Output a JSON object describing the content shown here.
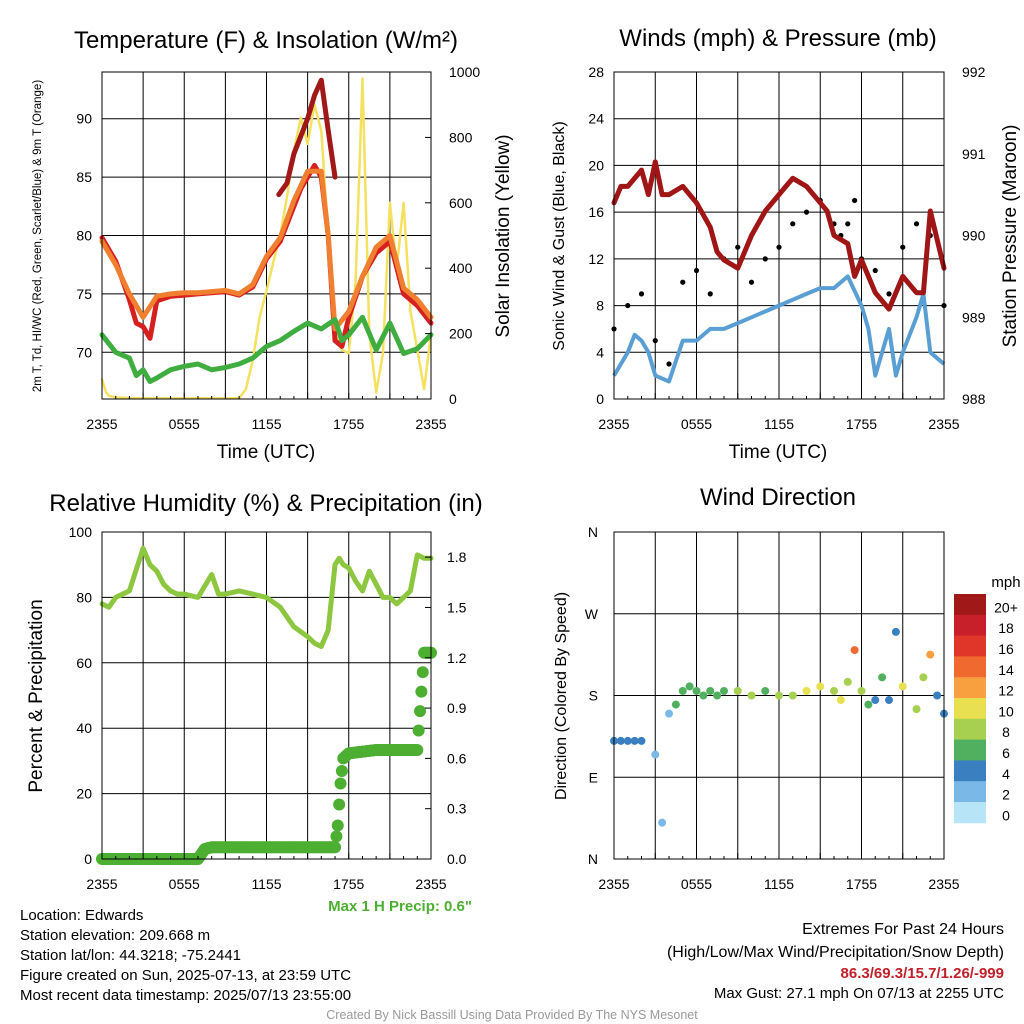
{
  "colors": {
    "green_rh": "#8dc63f",
    "precip": "#4daf32",
    "maroon": "#a01515",
    "black": "#000000",
    "blue": "#5a9fd4",
    "red": "#d62020",
    "orange": "#f08030",
    "yellow": "#f5e160",
    "scarlet": "#a01818",
    "hi_green": "#3fad3f",
    "extremes": "#c0202a"
  },
  "chart_data": [
    {
      "type": "line",
      "title": "Temperature (F) & Insolation (W/m²)",
      "xlabel": "Time (UTC)",
      "ylabel": "2m T, Td, HI/WC (Red, Green, Scarlet/Blue) & 9m T (Orange)",
      "y2label": "Solar Insolation (Yellow)",
      "x_ticks": [
        "2355",
        "0555",
        "1155",
        "1755",
        "2355"
      ],
      "y_ticks": [
        "70",
        "75",
        "80",
        "85",
        "90"
      ],
      "y2_ticks": [
        "0",
        "200",
        "400",
        "600",
        "800",
        "1000"
      ],
      "ylim": [
        66,
        94
      ],
      "y2lim": [
        0,
        1000
      ],
      "series": [
        {
          "name": "2m T",
          "color": "red",
          "x": [
            0,
            1,
            2,
            2.5,
            3,
            3.5,
            4,
            5,
            6,
            7,
            8,
            9,
            10,
            11,
            12,
            13,
            14,
            14.5,
            15,
            15.5,
            16,
            16.5,
            17,
            17.5,
            18,
            19,
            20,
            21,
            22,
            23,
            24
          ],
          "values": [
            79.8,
            77.8,
            74.5,
            72.5,
            72.2,
            71.2,
            74.4,
            74.8,
            74.9,
            75,
            75.1,
            75.2,
            74.9,
            75.6,
            78,
            79.5,
            82.5,
            84,
            85,
            86,
            85,
            80,
            71,
            70.5,
            73,
            76.5,
            78.5,
            79.5,
            75,
            74,
            72.5
          ]
        },
        {
          "name": "9m T",
          "color": "orange",
          "x": [
            0,
            1,
            2,
            3,
            4,
            5,
            6,
            7,
            8,
            9,
            10,
            11,
            12,
            13,
            14,
            15,
            16,
            16.5,
            17,
            18,
            19,
            20,
            21,
            22,
            23,
            24
          ],
          "values": [
            79.5,
            77.5,
            75,
            73,
            74.8,
            75,
            75.1,
            75.1,
            75.2,
            75.3,
            75,
            75.8,
            78.2,
            79.8,
            83,
            85.5,
            85.5,
            80,
            72,
            73.5,
            76.5,
            79,
            80,
            75.5,
            74.5,
            73
          ]
        },
        {
          "name": "Td",
          "color": "hi_green",
          "x": [
            0,
            1,
            2,
            2.5,
            3,
            3.5,
            4,
            5,
            6,
            7,
            8,
            9,
            10,
            11,
            12,
            13,
            14,
            15,
            16,
            17,
            17.5,
            18,
            19,
            20,
            21,
            22,
            23,
            24
          ],
          "values": [
            71.5,
            70,
            69.5,
            68,
            68.5,
            67.5,
            67.8,
            68.5,
            68.8,
            69,
            68.5,
            68.7,
            69,
            69.5,
            70.5,
            71,
            71.8,
            72.5,
            72,
            72.8,
            71,
            71.5,
            73,
            70.2,
            72.5,
            69.9,
            70.3,
            71.5
          ]
        },
        {
          "name": "HI",
          "color": "scarlet",
          "x": [
            12.9,
            13.5,
            14,
            14.5,
            15,
            15.5,
            16,
            16.5,
            17
          ],
          "values": [
            83.5,
            84.5,
            87,
            88.5,
            90,
            92,
            93.3,
            89,
            85
          ]
        }
      ],
      "y2_series": [
        {
          "name": "Solar",
          "color": "yellow",
          "x": [
            0,
            0.3,
            0.5,
            1,
            2,
            3,
            4,
            5,
            6,
            7,
            8,
            9,
            10,
            10.5,
            11,
            11.5,
            12,
            12.5,
            13,
            13.5,
            14,
            14.5,
            15,
            15.5,
            16,
            16.5,
            17,
            17.5,
            18,
            18.5,
            19,
            19.5,
            20,
            20.5,
            21,
            21.5,
            22,
            22.5,
            23,
            23.5,
            24
          ],
          "values": [
            60,
            20,
            10,
            5,
            3,
            2,
            2,
            2,
            2,
            2,
            2,
            2,
            2,
            30,
            120,
            250,
            330,
            420,
            500,
            620,
            760,
            860,
            780,
            900,
            820,
            500,
            200,
            150,
            140,
            360,
            980,
            200,
            20,
            140,
            600,
            400,
            600,
            270,
            150,
            30,
            200
          ]
        }
      ]
    },
    {
      "type": "scatter",
      "title": "Winds (mph) & Pressure (mb)",
      "xlabel": "Time (UTC)",
      "ylabel": "Sonic Wind & Gust (Blue, Black)",
      "y2label": "Station Pressure (Maroon)",
      "x_ticks": [
        "2355",
        "0555",
        "1155",
        "1755",
        "2355"
      ],
      "y_ticks": [
        "0",
        "4",
        "8",
        "12",
        "16",
        "20",
        "24",
        "28"
      ],
      "y2_ticks": [
        "988",
        "989",
        "990",
        "991",
        "992"
      ],
      "ylim": [
        0,
        28
      ],
      "y2lim": [
        988,
        992
      ],
      "series": [
        {
          "name": "Wind",
          "color": "blue",
          "x": [
            0,
            1,
            1.5,
            2,
            2.5,
            3,
            4,
            5,
            6,
            7,
            8,
            9,
            10,
            11,
            12,
            13,
            14,
            15,
            16,
            16.5,
            17,
            18,
            18.5,
            19,
            20,
            20.5,
            21,
            22,
            22.5,
            23,
            24
          ],
          "values": [
            2,
            4,
            5.5,
            5,
            4,
            2,
            1.5,
            5,
            5,
            6,
            6,
            6.5,
            7,
            7.5,
            8,
            8.5,
            9,
            9.5,
            9.5,
            10,
            10.5,
            8,
            6,
            2,
            6,
            2,
            4,
            7,
            9,
            4,
            3
          ]
        },
        {
          "name": "Gust",
          "color": "black",
          "x": [
            0,
            1,
            2,
            3,
            4,
            5,
            6,
            7,
            8,
            9,
            10,
            11,
            12,
            13,
            14,
            15,
            16,
            16.5,
            17,
            17.5,
            18,
            19,
            20,
            21,
            22,
            23,
            24
          ],
          "values": [
            6,
            8,
            9,
            5,
            3,
            10,
            11,
            9,
            12,
            13,
            10,
            12,
            13,
            15,
            16,
            17,
            15,
            14,
            15,
            17,
            12,
            11,
            9,
            13,
            15,
            14,
            8
          ]
        },
        {
          "name": "Pressure",
          "color": "maroon",
          "x": [
            0,
            0.5,
            1,
            2,
            2.5,
            3,
            3.5,
            4,
            5,
            6,
            7,
            7.5,
            8,
            9,
            10,
            11,
            12,
            12.5,
            13,
            14,
            15,
            15.5,
            16,
            17,
            17.5,
            18,
            19,
            20,
            21,
            22,
            22.5,
            23,
            24
          ],
          "values": [
            990.4,
            990.6,
            990.6,
            990.8,
            990.5,
            990.9,
            990.5,
            990.5,
            990.6,
            990.4,
            990.1,
            989.8,
            989.7,
            989.6,
            990.0,
            990.3,
            990.5,
            990.6,
            990.7,
            990.6,
            990.4,
            990.3,
            990.0,
            989.9,
            989.5,
            989.7,
            989.3,
            989.1,
            989.5,
            989.3,
            989.3,
            990.3,
            989.6
          ]
        }
      ]
    },
    {
      "type": "line",
      "title": "Relative Humidity (%) & Precipitation (in)",
      "ylabel": "Percent & Precipitation",
      "x_ticks": [
        "2355",
        "0555",
        "1155",
        "1755",
        "2355"
      ],
      "y_ticks": [
        "0",
        "20",
        "40",
        "60",
        "80",
        "100"
      ],
      "y2_ticks": [
        "0.0",
        "0.3",
        "0.6",
        "0.9",
        "1.2",
        "1.5",
        "1.8"
      ],
      "ylim": [
        0,
        100
      ],
      "y2lim": [
        0,
        1.95
      ],
      "note": "Max 1 H Precip: 0.6\"",
      "series": [
        {
          "name": "RH",
          "color": "green_rh",
          "x": [
            0,
            0.5,
            1,
            2,
            3,
            3.5,
            4,
            4.5,
            5,
            5.5,
            6,
            7,
            8,
            8.5,
            9,
            10,
            11,
            12,
            13,
            14,
            15,
            15.5,
            16,
            16.5,
            17,
            17.3,
            17.6,
            18,
            18.5,
            19,
            19.5,
            20,
            20.5,
            21,
            21.5,
            22,
            22.5,
            23,
            23.5,
            24
          ],
          "values": [
            78,
            77,
            80,
            82,
            95,
            90,
            88,
            84,
            82,
            81,
            81,
            80,
            87,
            81,
            81,
            82,
            81,
            80,
            77,
            71,
            68,
            66,
            65,
            70,
            90,
            92,
            90,
            89,
            85,
            82,
            88,
            84,
            80,
            80,
            78,
            80,
            82,
            93,
            92,
            92
          ]
        }
      ],
      "precip_series": {
        "name": "Precip",
        "color": "precip",
        "x": [
          0,
          1,
          2,
          3,
          4,
          5,
          6,
          7,
          7.5,
          8,
          9,
          10,
          11,
          12,
          13,
          14,
          15,
          16,
          17,
          17.2,
          17.4,
          17.6,
          18,
          19,
          20,
          21,
          22,
          22.5,
          23,
          23.5,
          24
        ],
        "values": [
          0,
          0,
          0,
          0,
          0,
          0,
          0,
          0,
          0.06,
          0.07,
          0.07,
          0.07,
          0.07,
          0.07,
          0.07,
          0.07,
          0.07,
          0.07,
          0.07,
          0.2,
          0.45,
          0.6,
          0.63,
          0.64,
          0.65,
          0.65,
          0.65,
          0.65,
          0.65,
          1.23,
          1.23
        ]
      }
    },
    {
      "type": "scatter",
      "title": "Wind Direction",
      "ylabel": "Direction (Colored By Speed)",
      "x_ticks": [
        "2355",
        "0555",
        "1155",
        "1755",
        "2355"
      ],
      "y_ticks": [
        "N",
        "E",
        "S",
        "W",
        "N"
      ],
      "legend_title": "mph",
      "legend_labels": [
        "20+",
        "18",
        "16",
        "14",
        "12",
        "10",
        "8",
        "6",
        "4",
        "2",
        "0"
      ],
      "legend_colors": [
        "#a01818",
        "#c8202a",
        "#e0362a",
        "#f06a30",
        "#f8a040",
        "#e8e050",
        "#a8d050",
        "#50b060",
        "#3a80c0",
        "#7ab8e8",
        "#b8e4f8"
      ],
      "direction_x": [
        0,
        0.5,
        1,
        1.5,
        2,
        3,
        3.5,
        4,
        4.5,
        5,
        5.5,
        6,
        6.5,
        7,
        7.5,
        8,
        9,
        10,
        11,
        12,
        13,
        14,
        15,
        16,
        16.5,
        17,
        17.5,
        18,
        18.5,
        19,
        19.5,
        20,
        20.5,
        21,
        22,
        22.5,
        23,
        23.5,
        24
      ],
      "direction_values": [
        130,
        130,
        130,
        130,
        130,
        115,
        40,
        160,
        170,
        185,
        190,
        185,
        180,
        185,
        180,
        185,
        185,
        180,
        185,
        180,
        180,
        185,
        190,
        185,
        175,
        195,
        230,
        185,
        170,
        175,
        200,
        175,
        250,
        190,
        165,
        200,
        225,
        180,
        160
      ],
      "direction_speeds": [
        3,
        4,
        4,
        3,
        4,
        2,
        1,
        2,
        5,
        5,
        5,
        6,
        5,
        5,
        6,
        6,
        7,
        7,
        6,
        7,
        8,
        10,
        9,
        8,
        10,
        8,
        14,
        7,
        6,
        4,
        5,
        3,
        4,
        9,
        7,
        8,
        12,
        4,
        3
      ]
    }
  ],
  "info": {
    "location": "Location: Edwards",
    "elevation": "Station elevation: 209.668 m",
    "latlon": "Station lat/lon: 44.3218; -75.2441",
    "created": "Figure created on Sun, 2025-07-13, at 23:59 UTC",
    "recent": "Most recent data timestamp: 2025/07/13 23:55:00",
    "extremes_title": "Extremes For Past 24 Hours",
    "extremes_sub": "(High/Low/Max Wind/Precipitation/Snow Depth)",
    "extremes_values": "86.3/69.3/15.7/1.26/-999",
    "max_gust": "Max Gust: 27.1 mph On 07/13 at 2255 UTC",
    "credit": "Created By Nick Bassill Using Data Provided By The NYS Mesonet"
  }
}
